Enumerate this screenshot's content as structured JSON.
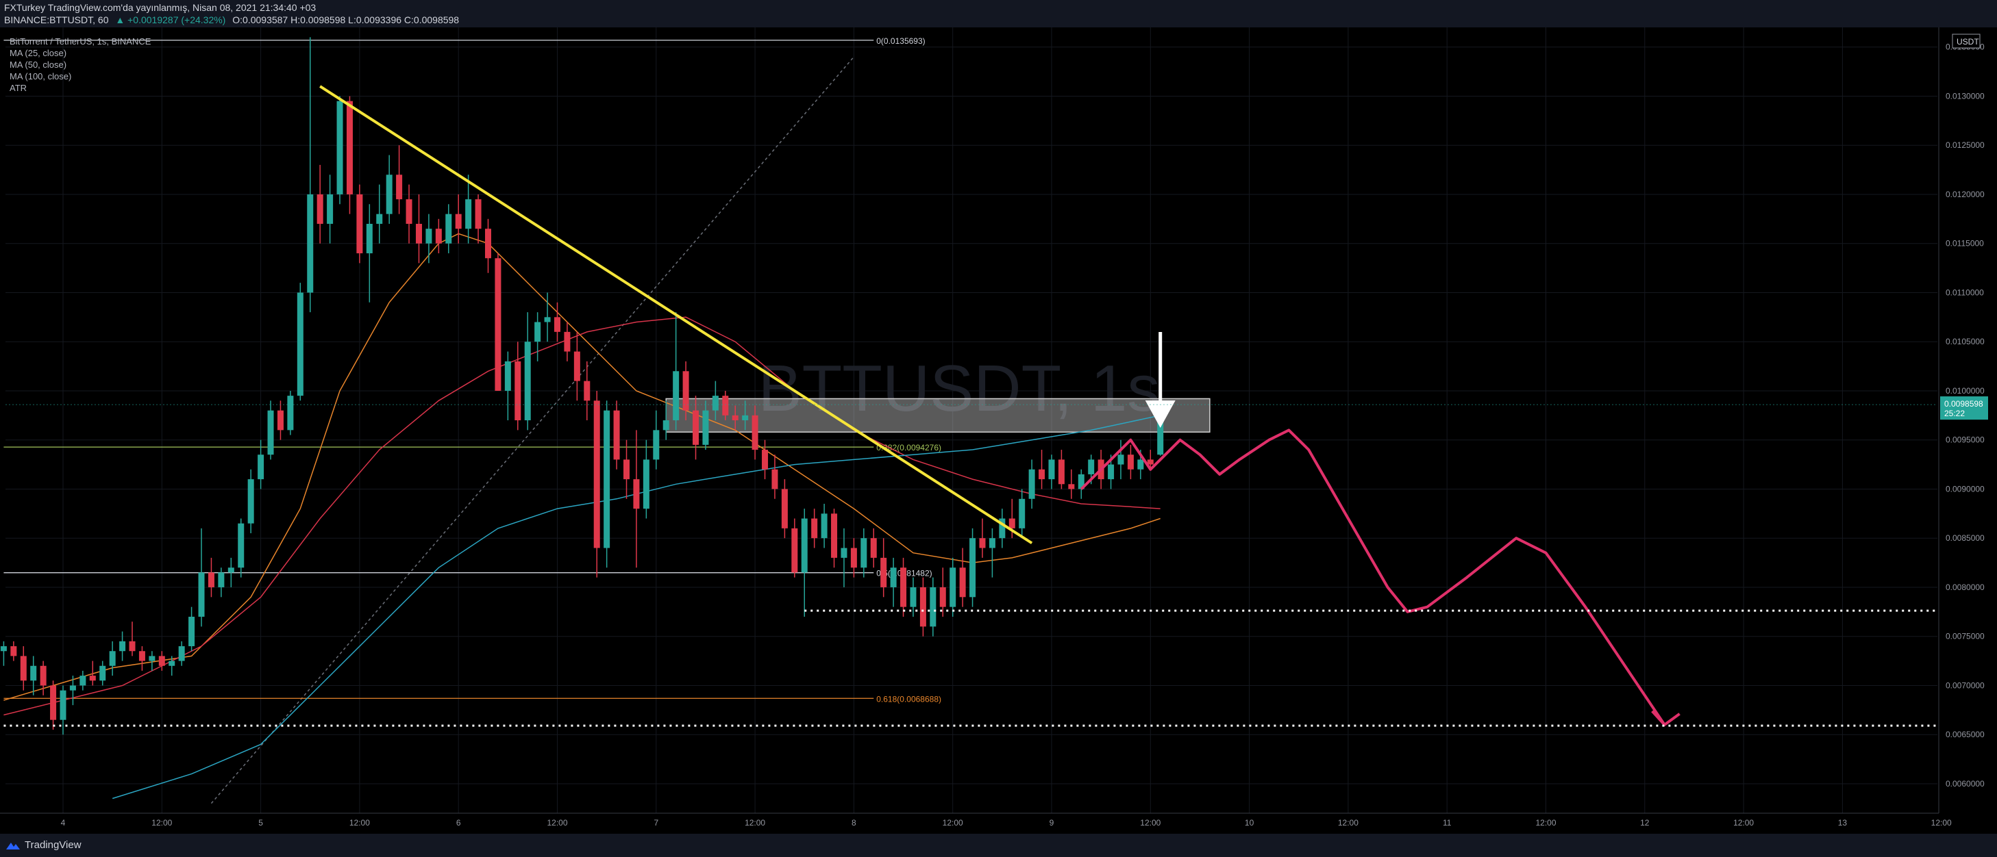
{
  "header": {
    "line1": "FXTurkey TradingView.com'da yayınlanmış, Nisan 08, 2021 21:34:40 +03",
    "symbol": "BINANCE:BTTUSDT, 60",
    "change": "▲ +0.0019287 (+24.32%)",
    "ohlc": "O:0.0093587 H:0.0098598 L:0.0093396 C:0.0098598"
  },
  "legend": {
    "title": "BitTorrent / TetherUS, 1s, BINANCE",
    "items": [
      "MA (25, close)",
      "MA (50, close)",
      "MA (100, close)",
      "ATR"
    ]
  },
  "watermark": "BTTUSDT, 1s",
  "currency": "USDT",
  "footer": {
    "brand": "TradingView"
  },
  "chart_data": {
    "type": "candlestick",
    "title": "BitTorrent / TetherUS, 1s, BINANCE",
    "ylim": [
      0.0057,
      0.0137
    ],
    "xlim": [
      0,
      24
    ],
    "y_ticks": [
      "0.0060000",
      "0.0065000",
      "0.0070000",
      "0.0075000",
      "0.0080000",
      "0.0085000",
      "0.0090000",
      "0.0095000",
      "0.0100000",
      "0.0105000",
      "0.0110000",
      "0.0115000",
      "0.0120000",
      "0.0125000",
      "0.0130000",
      "0.0135000"
    ],
    "x_ticks": [
      {
        "x": 1,
        "label": "12:00"
      },
      {
        "x": 2,
        "label": "5"
      },
      {
        "x": 3,
        "label": "12:00"
      },
      {
        "x": 4,
        "label": "6"
      },
      {
        "x": 5,
        "label": "12:00"
      },
      {
        "x": 6,
        "label": "7"
      },
      {
        "x": 7,
        "label": "12:00"
      },
      {
        "x": 8,
        "label": "8"
      },
      {
        "x": 9,
        "label": "12:00"
      },
      {
        "x": 10,
        "label": "9"
      },
      {
        "x": 11,
        "label": "12:00"
      },
      {
        "x": 12,
        "label": "10"
      },
      {
        "x": 13,
        "label": "12:00"
      },
      {
        "x": 14,
        "label": "11"
      },
      {
        "x": 15,
        "label": "12:00"
      },
      {
        "x": 16,
        "label": "12"
      },
      {
        "x": 17,
        "label": "12:00"
      },
      {
        "x": 18,
        "label": "13"
      },
      {
        "x": 19,
        "label": "12:00"
      }
    ],
    "first_tick_label": "4",
    "candles": [
      [
        -0.6,
        0.00735,
        0.00745,
        0.0072,
        0.0074
      ],
      [
        -0.5,
        0.0074,
        0.00745,
        0.00725,
        0.0073
      ],
      [
        -0.4,
        0.0073,
        0.0074,
        0.00695,
        0.00705
      ],
      [
        -0.3,
        0.00705,
        0.0073,
        0.0069,
        0.0072
      ],
      [
        -0.2,
        0.0072,
        0.00725,
        0.0069,
        0.007
      ],
      [
        -0.1,
        0.007,
        0.00705,
        0.00655,
        0.00665
      ],
      [
        0.0,
        0.00665,
        0.007,
        0.0065,
        0.00695
      ],
      [
        0.1,
        0.00695,
        0.0071,
        0.0068,
        0.007
      ],
      [
        0.2,
        0.007,
        0.00715,
        0.00695,
        0.0071
      ],
      [
        0.3,
        0.0071,
        0.00725,
        0.007,
        0.00705
      ],
      [
        0.4,
        0.00705,
        0.00725,
        0.007,
        0.0072
      ],
      [
        0.5,
        0.0072,
        0.00745,
        0.0071,
        0.00735
      ],
      [
        0.6,
        0.00735,
        0.00755,
        0.00725,
        0.00745
      ],
      [
        0.7,
        0.00745,
        0.00765,
        0.0073,
        0.00735
      ],
      [
        0.8,
        0.00735,
        0.0074,
        0.00715,
        0.00725
      ],
      [
        0.9,
        0.00725,
        0.00735,
        0.00715,
        0.0073
      ],
      [
        1.0,
        0.0073,
        0.00735,
        0.00715,
        0.0072
      ],
      [
        1.1,
        0.0072,
        0.0073,
        0.0071,
        0.00725
      ],
      [
        1.2,
        0.00725,
        0.00745,
        0.0072,
        0.0074
      ],
      [
        1.3,
        0.0074,
        0.0078,
        0.00735,
        0.0077
      ],
      [
        1.4,
        0.0077,
        0.0086,
        0.0076,
        0.00815
      ],
      [
        1.5,
        0.00815,
        0.0083,
        0.0079,
        0.008
      ],
      [
        1.6,
        0.008,
        0.0082,
        0.0079,
        0.00815
      ],
      [
        1.7,
        0.00815,
        0.0083,
        0.008,
        0.0082
      ],
      [
        1.8,
        0.0082,
        0.0087,
        0.0081,
        0.00865
      ],
      [
        1.9,
        0.00865,
        0.0092,
        0.00855,
        0.0091
      ],
      [
        2.0,
        0.0091,
        0.0095,
        0.009,
        0.00935
      ],
      [
        2.1,
        0.00935,
        0.0099,
        0.0093,
        0.0098
      ],
      [
        2.2,
        0.0098,
        0.0099,
        0.0095,
        0.0096
      ],
      [
        2.3,
        0.0096,
        0.01,
        0.00955,
        0.00995
      ],
      [
        2.4,
        0.00995,
        0.0111,
        0.0099,
        0.011
      ],
      [
        2.5,
        0.011,
        0.0136,
        0.0108,
        0.012
      ],
      [
        2.6,
        0.012,
        0.0123,
        0.0115,
        0.0117
      ],
      [
        2.7,
        0.0117,
        0.0122,
        0.0115,
        0.012
      ],
      [
        2.8,
        0.012,
        0.013,
        0.0119,
        0.01295
      ],
      [
        2.9,
        0.01295,
        0.013,
        0.0118,
        0.012
      ],
      [
        3.0,
        0.012,
        0.0121,
        0.0113,
        0.0114
      ],
      [
        3.1,
        0.0114,
        0.0119,
        0.0109,
        0.0117
      ],
      [
        3.2,
        0.0117,
        0.0121,
        0.0115,
        0.0118
      ],
      [
        3.3,
        0.0118,
        0.0124,
        0.0117,
        0.0122
      ],
      [
        3.4,
        0.0122,
        0.0125,
        0.0118,
        0.01195
      ],
      [
        3.5,
        0.01195,
        0.0121,
        0.0115,
        0.0117
      ],
      [
        3.6,
        0.0117,
        0.012,
        0.0113,
        0.0115
      ],
      [
        3.7,
        0.0115,
        0.0118,
        0.0113,
        0.01165
      ],
      [
        3.8,
        0.01165,
        0.01175,
        0.0114,
        0.0115
      ],
      [
        3.9,
        0.0115,
        0.0119,
        0.0114,
        0.0118
      ],
      [
        4.0,
        0.0118,
        0.012,
        0.0115,
        0.01165
      ],
      [
        4.1,
        0.01165,
        0.0122,
        0.0115,
        0.01195
      ],
      [
        4.2,
        0.01195,
        0.012,
        0.0115,
        0.01165
      ],
      [
        4.3,
        0.01165,
        0.01175,
        0.0112,
        0.01135
      ],
      [
        4.4,
        0.01135,
        0.0114,
        0.01,
        0.01
      ],
      [
        4.5,
        0.01,
        0.0104,
        0.0097,
        0.0103
      ],
      [
        4.6,
        0.0103,
        0.0105,
        0.0096,
        0.0097
      ],
      [
        4.7,
        0.0097,
        0.0108,
        0.0096,
        0.0105
      ],
      [
        4.8,
        0.0105,
        0.0108,
        0.0103,
        0.0107
      ],
      [
        4.9,
        0.0107,
        0.011,
        0.0105,
        0.01075
      ],
      [
        5.0,
        0.01075,
        0.0109,
        0.0105,
        0.0106
      ],
      [
        5.1,
        0.0106,
        0.0107,
        0.0103,
        0.0104
      ],
      [
        5.2,
        0.0104,
        0.0106,
        0.0099,
        0.0101
      ],
      [
        5.3,
        0.0101,
        0.0103,
        0.0097,
        0.0099
      ],
      [
        5.4,
        0.0099,
        0.01,
        0.0081,
        0.0084
      ],
      [
        5.5,
        0.0084,
        0.0099,
        0.0082,
        0.0098
      ],
      [
        5.6,
        0.0098,
        0.0099,
        0.0092,
        0.0093
      ],
      [
        5.7,
        0.0093,
        0.0095,
        0.0089,
        0.0091
      ],
      [
        5.8,
        0.0091,
        0.0096,
        0.0082,
        0.0088
      ],
      [
        5.9,
        0.0088,
        0.0095,
        0.0087,
        0.0093
      ],
      [
        6.0,
        0.0093,
        0.0098,
        0.0092,
        0.0096
      ],
      [
        6.1,
        0.0096,
        0.0099,
        0.0095,
        0.0097
      ],
      [
        6.2,
        0.0097,
        0.0108,
        0.0096,
        0.0102
      ],
      [
        6.3,
        0.0102,
        0.0103,
        0.0097,
        0.0098
      ],
      [
        6.4,
        0.0098,
        0.00995,
        0.0093,
        0.00945
      ],
      [
        6.5,
        0.00945,
        0.0099,
        0.0094,
        0.0098
      ],
      [
        6.6,
        0.0098,
        0.0101,
        0.0097,
        0.00995
      ],
      [
        6.7,
        0.00995,
        0.01,
        0.0097,
        0.00975
      ],
      [
        6.8,
        0.00975,
        0.00985,
        0.0096,
        0.0097
      ],
      [
        6.9,
        0.0097,
        0.0099,
        0.0096,
        0.00975
      ],
      [
        7.0,
        0.00975,
        0.00985,
        0.0093,
        0.0094
      ],
      [
        7.1,
        0.0094,
        0.0095,
        0.0091,
        0.0092
      ],
      [
        7.2,
        0.0092,
        0.00935,
        0.0089,
        0.009
      ],
      [
        7.3,
        0.009,
        0.0091,
        0.0085,
        0.0086
      ],
      [
        7.4,
        0.0086,
        0.0087,
        0.0081,
        0.00815
      ],
      [
        7.5,
        0.00815,
        0.0088,
        0.0077,
        0.0087
      ],
      [
        7.6,
        0.0087,
        0.0088,
        0.0084,
        0.0085
      ],
      [
        7.7,
        0.0085,
        0.00885,
        0.0084,
        0.00875
      ],
      [
        7.8,
        0.00875,
        0.0088,
        0.0082,
        0.0083
      ],
      [
        7.9,
        0.0083,
        0.0086,
        0.008,
        0.0084
      ],
      [
        8.0,
        0.0084,
        0.0085,
        0.0081,
        0.0082
      ],
      [
        8.1,
        0.0082,
        0.0086,
        0.0081,
        0.0085
      ],
      [
        8.2,
        0.0085,
        0.0086,
        0.0082,
        0.0083
      ],
      [
        8.3,
        0.0083,
        0.0085,
        0.0079,
        0.008
      ],
      [
        8.4,
        0.008,
        0.0083,
        0.0078,
        0.0082
      ],
      [
        8.5,
        0.0082,
        0.0083,
        0.0077,
        0.0078
      ],
      [
        8.6,
        0.0078,
        0.0081,
        0.0077,
        0.008
      ],
      [
        8.7,
        0.008,
        0.0081,
        0.0075,
        0.0076
      ],
      [
        8.8,
        0.0076,
        0.0081,
        0.0075,
        0.008
      ],
      [
        8.9,
        0.008,
        0.0082,
        0.0077,
        0.0078
      ],
      [
        9.0,
        0.0078,
        0.0083,
        0.0077,
        0.0082
      ],
      [
        9.1,
        0.0082,
        0.0084,
        0.0078,
        0.0079
      ],
      [
        9.2,
        0.0079,
        0.0086,
        0.0078,
        0.0085
      ],
      [
        9.3,
        0.0085,
        0.0087,
        0.0083,
        0.0084
      ],
      [
        9.4,
        0.0084,
        0.0086,
        0.0081,
        0.0085
      ],
      [
        9.5,
        0.0085,
        0.0088,
        0.0084,
        0.0087
      ],
      [
        9.6,
        0.0087,
        0.0089,
        0.0085,
        0.0086
      ],
      [
        9.7,
        0.0086,
        0.009,
        0.0085,
        0.0089
      ],
      [
        9.8,
        0.0089,
        0.0093,
        0.0088,
        0.0092
      ],
      [
        9.9,
        0.0092,
        0.0094,
        0.009,
        0.0091
      ],
      [
        10.0,
        0.0091,
        0.00935,
        0.009,
        0.0093
      ],
      [
        10.1,
        0.0093,
        0.0094,
        0.009,
        0.00905
      ],
      [
        10.2,
        0.00905,
        0.0092,
        0.0089,
        0.009
      ],
      [
        10.3,
        0.009,
        0.0092,
        0.0089,
        0.00915
      ],
      [
        10.4,
        0.00915,
        0.00935,
        0.00905,
        0.0093
      ],
      [
        10.5,
        0.0093,
        0.0094,
        0.009,
        0.0091
      ],
      [
        10.6,
        0.0091,
        0.00935,
        0.009,
        0.00925
      ],
      [
        10.7,
        0.00925,
        0.0095,
        0.0091,
        0.00935
      ],
      [
        10.8,
        0.00935,
        0.00945,
        0.0091,
        0.0092
      ],
      [
        10.9,
        0.0092,
        0.0094,
        0.0091,
        0.0093
      ],
      [
        11.0,
        0.0093,
        0.0094,
        0.0092,
        0.00925
      ],
      [
        11.1,
        0.00935,
        0.00986,
        0.00934,
        0.00986
      ]
    ],
    "moving_averages": [
      {
        "name": "MA (25, close)",
        "color": "#e8852b",
        "points": [
          [
            -0.6,
            0.00685
          ],
          [
            0.5,
            0.00718
          ],
          [
            1.3,
            0.0073
          ],
          [
            1.9,
            0.0079
          ],
          [
            2.4,
            0.0088
          ],
          [
            2.8,
            0.01
          ],
          [
            3.3,
            0.0109
          ],
          [
            3.8,
            0.0115
          ],
          [
            4.0,
            0.0116
          ],
          [
            4.3,
            0.0115
          ],
          [
            4.8,
            0.011
          ],
          [
            5.3,
            0.0105
          ],
          [
            5.8,
            0.01
          ],
          [
            6.3,
            0.0098
          ],
          [
            6.8,
            0.0096
          ],
          [
            7.4,
            0.0092
          ],
          [
            8.0,
            0.0088
          ],
          [
            8.6,
            0.00835
          ],
          [
            9.2,
            0.00825
          ],
          [
            9.6,
            0.0083
          ],
          [
            10.2,
            0.00845
          ],
          [
            10.8,
            0.0086
          ],
          [
            11.1,
            0.0087
          ]
        ]
      },
      {
        "name": "MA (50, close)",
        "color": "#d8344a",
        "points": [
          [
            -0.6,
            0.0067
          ],
          [
            0.6,
            0.007
          ],
          [
            1.4,
            0.0074
          ],
          [
            2.0,
            0.0079
          ],
          [
            2.6,
            0.0087
          ],
          [
            3.2,
            0.0094
          ],
          [
            3.8,
            0.0099
          ],
          [
            4.3,
            0.0102
          ],
          [
            4.8,
            0.0104
          ],
          [
            5.3,
            0.0106
          ],
          [
            5.8,
            0.0107
          ],
          [
            6.3,
            0.01075
          ],
          [
            6.8,
            0.0105
          ],
          [
            7.4,
            0.01
          ],
          [
            8.0,
            0.0096
          ],
          [
            8.6,
            0.0093
          ],
          [
            9.2,
            0.0091
          ],
          [
            9.8,
            0.00895
          ],
          [
            10.3,
            0.00885
          ],
          [
            10.8,
            0.00882
          ],
          [
            11.1,
            0.0088
          ]
        ]
      },
      {
        "name": "MA (100, close)",
        "color": "#2ba6c3",
        "points": [
          [
            0.5,
            0.00585
          ],
          [
            1.3,
            0.0061
          ],
          [
            2.0,
            0.0064
          ],
          [
            2.6,
            0.007
          ],
          [
            3.2,
            0.0076
          ],
          [
            3.8,
            0.0082
          ],
          [
            4.4,
            0.0086
          ],
          [
            5.0,
            0.0088
          ],
          [
            5.6,
            0.0089
          ],
          [
            6.2,
            0.00905
          ],
          [
            6.8,
            0.00915
          ],
          [
            7.4,
            0.00925
          ],
          [
            8.0,
            0.0093
          ],
          [
            8.6,
            0.00935
          ],
          [
            9.2,
            0.0094
          ],
          [
            9.8,
            0.0095
          ],
          [
            10.4,
            0.0096
          ],
          [
            11.1,
            0.00975
          ]
        ]
      }
    ],
    "fib_levels": [
      {
        "label": "0(0.0135693)",
        "price": 0.0135693,
        "color": "#d1d4dc"
      },
      {
        "label": "0.382(0.0094276)",
        "price": 0.0094276,
        "color": "#a3c45a"
      },
      {
        "label": "0.5(0.0081482)",
        "price": 0.0081482,
        "color": "#d1d4dc"
      },
      {
        "label": "0.618(0.0068688)",
        "price": 0.0068688,
        "color": "#e8852b"
      }
    ],
    "fib_x_range": [
      -0.6,
      8.2
    ],
    "trendline": {
      "color": "#f5e53a",
      "from": [
        2.6,
        0.0131
      ],
      "to": [
        9.8,
        0.00845
      ]
    },
    "diagonal": {
      "from": [
        1.5,
        0.0058
      ],
      "to": [
        8.0,
        0.0134
      ]
    },
    "zone": {
      "x0": 6.1,
      "x1": 11.6,
      "y0": 0.00958,
      "y1": 0.00992
    },
    "projection": {
      "color": "#e0306a",
      "points": [
        [
          10.3,
          0.009
        ],
        [
          10.5,
          0.0092
        ],
        [
          10.8,
          0.0095
        ],
        [
          11.0,
          0.0092
        ],
        [
          11.3,
          0.0095
        ],
        [
          11.5,
          0.00935
        ],
        [
          11.7,
          0.00915
        ],
        [
          11.9,
          0.0093
        ],
        [
          12.2,
          0.0095
        ],
        [
          12.4,
          0.0096
        ],
        [
          12.6,
          0.0094
        ],
        [
          13.0,
          0.0087
        ],
        [
          13.4,
          0.008
        ],
        [
          13.6,
          0.00775
        ],
        [
          13.8,
          0.0078
        ],
        [
          14.2,
          0.0081
        ],
        [
          14.7,
          0.0085
        ],
        [
          15.0,
          0.00835
        ],
        [
          15.4,
          0.0078
        ],
        [
          15.8,
          0.0072
        ],
        [
          16.2,
          0.0066
        ]
      ]
    },
    "support_lines": [
      {
        "price": 0.0077616,
        "x0": 7.5,
        "label": "0.0077616"
      },
      {
        "price": 0.0065911,
        "x0": -0.6,
        "label": "0.0065911"
      }
    ],
    "last_price": {
      "label": "0.0098598",
      "timer": "25:22",
      "price": 0.0098598,
      "color": "#26a69a"
    },
    "colors": {
      "up": "#26a69a",
      "down": "#e0384a"
    }
  }
}
